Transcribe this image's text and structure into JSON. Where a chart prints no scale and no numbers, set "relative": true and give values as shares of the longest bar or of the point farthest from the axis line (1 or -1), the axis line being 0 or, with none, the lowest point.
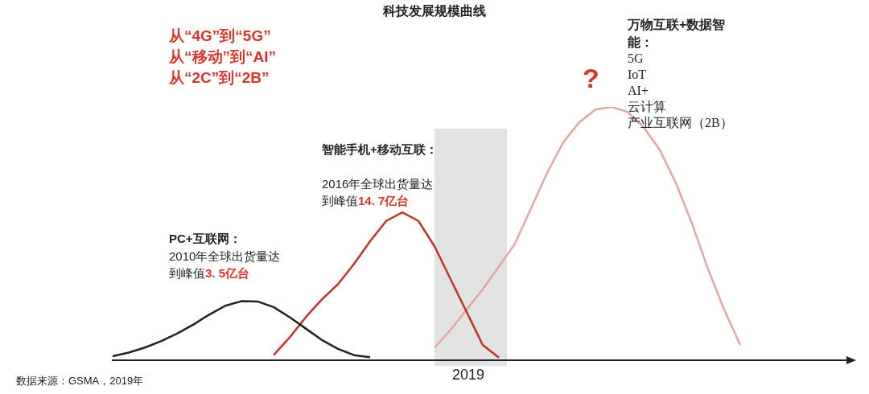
{
  "chart_data": {
    "type": "line",
    "title": "科技发展规模曲线",
    "relative": true,
    "legend": false,
    "marker": "none",
    "line_style": "solid",
    "categories": [
      null,
      null,
      null,
      null,
      null,
      null,
      null,
      null,
      null,
      null,
      null,
      null,
      null,
      null,
      null,
      null,
      null,
      null,
      null,
      null,
      null,
      null,
      null,
      null,
      null,
      null,
      null,
      null,
      null,
      null,
      null,
      null,
      null,
      null,
      null,
      null,
      null,
      null,
      null,
      null,
      null,
      null,
      null,
      null,
      null,
      null,
      null
    ],
    "series": [
      {
        "color": "#222222",
        "values": [
          0.016,
          0.03,
          0.05,
          0.075,
          0.105,
          0.14,
          0.18,
          0.215,
          0.233,
          0.232,
          0.21,
          0.17,
          0.125,
          0.08,
          0.045,
          0.02,
          0.012,
          null,
          null,
          null,
          null,
          null,
          null,
          null,
          null,
          null,
          null,
          null,
          null,
          null,
          null,
          null,
          null,
          null,
          null,
          null,
          null,
          null,
          null,
          null,
          null,
          null,
          null,
          null,
          null,
          null,
          null
        ]
      },
      {
        "color": "#c0342b",
        "values": [
          null,
          null,
          null,
          null,
          null,
          null,
          null,
          null,
          null,
          null,
          0.02,
          0.09,
          0.17,
          0.24,
          0.3,
          0.38,
          0.47,
          0.55,
          0.584,
          0.55,
          0.45,
          0.32,
          0.19,
          0.06,
          0.01,
          null,
          null,
          null,
          null,
          null,
          null,
          null,
          null,
          null,
          null,
          null,
          null,
          null,
          null,
          null,
          null,
          null,
          null,
          null,
          null,
          null,
          null
        ]
      },
      {
        "color": "#e0a7a3",
        "values": [
          null,
          null,
          null,
          null,
          null,
          null,
          null,
          null,
          null,
          null,
          null,
          null,
          null,
          null,
          null,
          null,
          null,
          null,
          null,
          null,
          0.05,
          0.12,
          0.2,
          0.28,
          0.37,
          0.46,
          0.6,
          0.74,
          0.86,
          0.94,
          0.99,
          1,
          0.98,
          0.92,
          0.83,
          0.7,
          0.54,
          0.36,
          0.2,
          0.06,
          null,
          null,
          null,
          null,
          null,
          null,
          null
        ]
      }
    ],
    "annotations": [
      "从“4G”到“5G”\n从“移动”到“AI”\n从“2C”到“2B”",
      "PC+互联网：",
      "2010年全球出货量达到峰值",
      "3. 5亿台",
      "智能手机+移动互联：",
      "2016年全球出货量达到峰值",
      "14. 7亿台",
      "?",
      "万物互联+数据智能：",
      "5G",
      "IoT",
      "AI+",
      "云计算",
      "产业互联网（2B）",
      "数据来源：GSMA，2019年",
      "2019"
    ]
  }
}
